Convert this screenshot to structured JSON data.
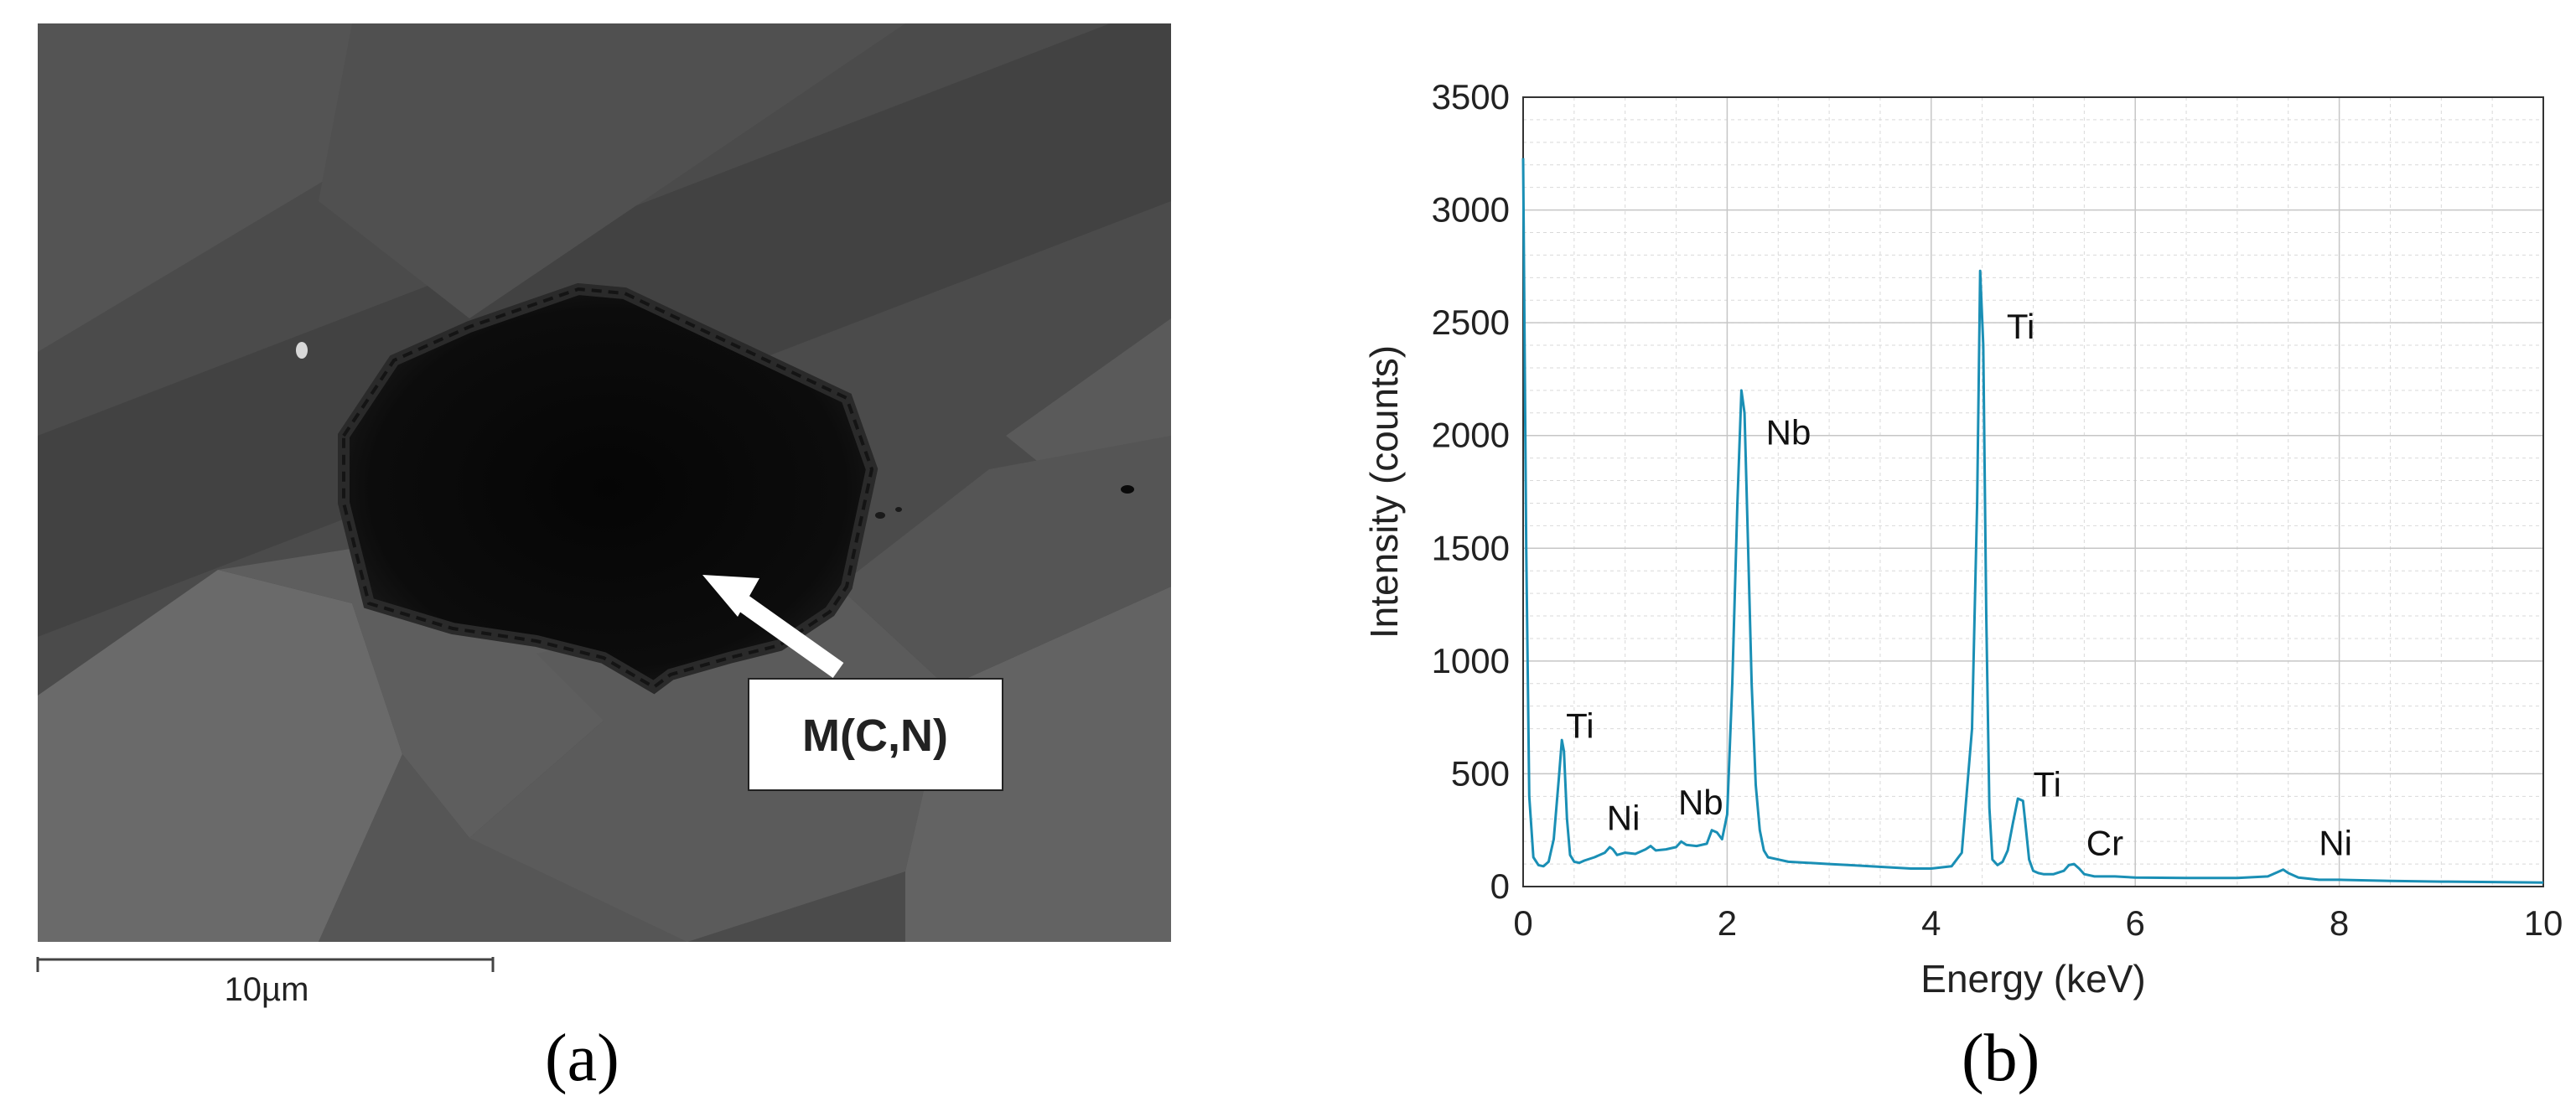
{
  "panel_a": {
    "label": "(a)",
    "annotation": "M(C,N)",
    "scale_bar_text": "10µm"
  },
  "panel_b": {
    "label": "(b)"
  },
  "chart_data": {
    "type": "line",
    "title": "",
    "xlabel": "Energy (keV)",
    "ylabel": "Intensity (counts)",
    "xlim": [
      0,
      10
    ],
    "ylim": [
      0,
      3500
    ],
    "xticks": [
      0,
      2,
      4,
      6,
      8,
      10
    ],
    "yticks": [
      0,
      500,
      1000,
      1500,
      2000,
      2500,
      3000,
      3500
    ],
    "grid": true,
    "minor_grid": true,
    "line_color": "#1a8fb5",
    "series": [
      {
        "x": [
          0.0,
          0.03,
          0.06,
          0.1,
          0.15,
          0.2,
          0.25,
          0.3,
          0.35,
          0.38,
          0.4,
          0.43,
          0.46,
          0.5,
          0.55,
          0.6,
          0.7,
          0.8,
          0.85,
          0.88,
          0.92,
          1.0,
          1.1,
          1.2,
          1.25,
          1.3,
          1.4,
          1.5,
          1.55,
          1.6,
          1.7,
          1.8,
          1.85,
          1.9,
          1.95,
          2.0,
          2.05,
          2.1,
          2.14,
          2.17,
          2.2,
          2.24,
          2.28,
          2.32,
          2.36,
          2.4,
          2.5,
          2.6,
          2.8,
          3.0,
          3.2,
          3.4,
          3.6,
          3.8,
          4.0,
          4.2,
          4.3,
          4.4,
          4.45,
          4.48,
          4.51,
          4.54,
          4.57,
          4.6,
          4.65,
          4.7,
          4.75,
          4.8,
          4.85,
          4.9,
          4.93,
          4.96,
          5.0,
          5.05,
          5.1,
          5.2,
          5.3,
          5.35,
          5.4,
          5.45,
          5.5,
          5.6,
          5.8,
          6.0,
          6.5,
          7.0,
          7.3,
          7.4,
          7.45,
          7.5,
          7.6,
          7.8,
          8.0,
          8.5,
          9.0,
          9.5,
          10.0
        ],
        "values": [
          3230,
          1500,
          400,
          130,
          95,
          90,
          110,
          210,
          480,
          650,
          600,
          300,
          140,
          110,
          105,
          115,
          130,
          150,
          175,
          165,
          140,
          150,
          145,
          165,
          180,
          160,
          165,
          175,
          200,
          185,
          180,
          190,
          250,
          240,
          210,
          320,
          900,
          1700,
          2200,
          2100,
          1600,
          900,
          450,
          250,
          160,
          130,
          120,
          110,
          105,
          100,
          95,
          90,
          85,
          80,
          80,
          90,
          150,
          700,
          1700,
          2730,
          2400,
          1200,
          350,
          120,
          95,
          110,
          160,
          280,
          390,
          380,
          250,
          120,
          70,
          60,
          55,
          55,
          70,
          95,
          100,
          80,
          55,
          45,
          45,
          40,
          38,
          38,
          45,
          65,
          75,
          60,
          40,
          30,
          30,
          25,
          22,
          20,
          18
        ]
      }
    ],
    "annotations": [
      {
        "text": "Ti",
        "x": 0.42,
        "y": 660
      },
      {
        "text": "Ni",
        "x": 0.82,
        "y": 250
      },
      {
        "text": "Nb",
        "x": 1.52,
        "y": 320
      },
      {
        "text": "Nb",
        "x": 2.38,
        "y": 1960
      },
      {
        "text": "Ti",
        "x": 4.74,
        "y": 2430
      },
      {
        "text": "Ti",
        "x": 5.0,
        "y": 400
      },
      {
        "text": "Cr",
        "x": 5.52,
        "y": 140
      },
      {
        "text": "Ni",
        "x": 7.8,
        "y": 140
      }
    ]
  }
}
